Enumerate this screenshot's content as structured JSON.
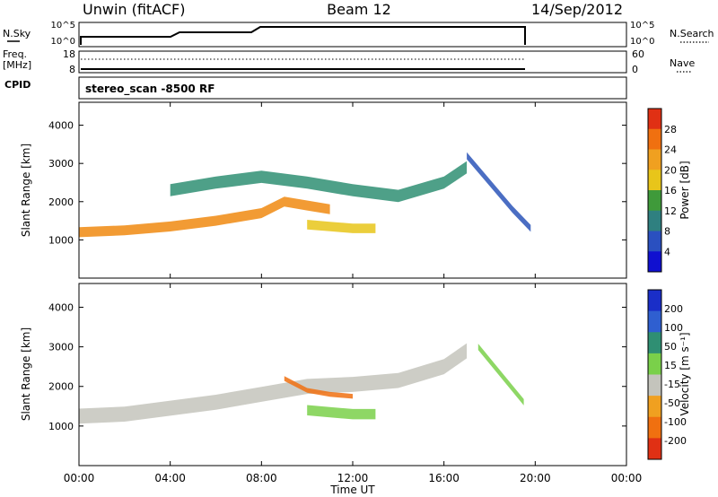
{
  "header": {
    "station": "Unwin (fitACF)",
    "beam": "Beam 12",
    "date": "14/Sep/2012"
  },
  "top_panels": {
    "nsky_label": "N.Sky",
    "nsearch_label": "N.Search",
    "count_tick_hi": "10^5",
    "count_tick_lo": "10^0",
    "freq_label_1": "Freq.",
    "freq_label_2": "[MHz]",
    "freq_ticks": [
      "18",
      "8"
    ],
    "nave_label": "Nave",
    "nave_ticks": [
      "60",
      "0"
    ],
    "cpid_label": "CPID",
    "cpid_value": "stereo_scan -8500 RF"
  },
  "colors": {
    "dark_blue": "#1a2ec8",
    "blue": "#2b55b8",
    "teal": "#2f8f73",
    "green": "#3f9a3a",
    "yellow": "#e8c51a",
    "orange": "#f08a10",
    "red": "#e03014",
    "gray": "#c4c4bc",
    "light_green": "#7ad04a"
  },
  "chart_data": [
    {
      "type": "heatmap",
      "name": "power",
      "ylabel": "Slant Range [km]",
      "yticks": [
        1000,
        2000,
        3000,
        4000
      ],
      "ylim": [
        0,
        4600
      ],
      "xlim": [
        0,
        24
      ],
      "colorbar_label": "Power [dB]",
      "colorbar_ticks": [
        "4",
        "8",
        "12",
        "16",
        "20",
        "24",
        "28"
      ],
      "colorbar_colors": [
        "#1010d0",
        "#2a50c0",
        "#2f8080",
        "#3f9a3a",
        "#e8c51a",
        "#f0a020",
        "#f07010",
        "#e03014"
      ],
      "bands": [
        {
          "x": [
            0,
            2,
            4,
            6,
            8,
            9,
            10,
            11
          ],
          "y": [
            1200,
            1250,
            1350,
            1500,
            1700,
            2000,
            1900,
            1800
          ],
          "w": 260,
          "c": "#f08a10"
        },
        {
          "x": [
            4,
            6,
            8,
            10,
            12,
            14,
            16,
            17
          ],
          "y": [
            2300,
            2500,
            2650,
            2500,
            2300,
            2150,
            2500,
            2900
          ],
          "w": 320,
          "c": "#2f8f73"
        },
        {
          "x": [
            10,
            11,
            12,
            13
          ],
          "y": [
            1400,
            1350,
            1300,
            1300
          ],
          "w": 250,
          "c": "#e8c51a"
        },
        {
          "x": [
            17,
            18,
            19,
            19.8
          ],
          "y": [
            3200,
            2500,
            1800,
            1300
          ],
          "w": 180,
          "c": "#2b55b8"
        }
      ]
    },
    {
      "type": "heatmap",
      "name": "velocity",
      "ylabel": "Slant Range [km]",
      "yticks": [
        1000,
        2000,
        3000,
        4000
      ],
      "ylim": [
        0,
        4600
      ],
      "xlim": [
        0,
        24
      ],
      "xticks": [
        "00:00",
        "04:00",
        "08:00",
        "12:00",
        "16:00",
        "20:00",
        "00:00"
      ],
      "xlabel": "Time UT",
      "colorbar_label": "Velocity [m s⁻¹]",
      "colorbar_ticks": [
        "200",
        "100",
        "50",
        "15",
        "-15",
        "-50",
        "-100",
        "-200"
      ],
      "colorbar_colors": [
        "#1a2ec8",
        "#2f5fd0",
        "#2f8f73",
        "#7ad04a",
        "#c4c4bc",
        "#f0a020",
        "#f07010",
        "#e03014"
      ],
      "bands": [
        {
          "x": [
            0,
            2,
            4,
            6,
            8,
            10,
            12,
            14,
            16,
            17
          ],
          "y": [
            1250,
            1300,
            1450,
            1600,
            1800,
            2000,
            2050,
            2150,
            2500,
            2900
          ],
          "w": 380,
          "c": "#c4c4bc"
        },
        {
          "x": [
            10,
            11,
            12,
            13
          ],
          "y": [
            1400,
            1350,
            1300,
            1300
          ],
          "w": 260,
          "c": "#7ad04a"
        },
        {
          "x": [
            9,
            10,
            11,
            12
          ],
          "y": [
            2200,
            1900,
            1800,
            1750
          ],
          "w": 120,
          "c": "#f07010"
        },
        {
          "x": [
            17.5,
            18.5,
            19.5
          ],
          "y": [
            3000,
            2300,
            1600
          ],
          "w": 160,
          "c": "#7ad04a"
        }
      ]
    }
  ]
}
